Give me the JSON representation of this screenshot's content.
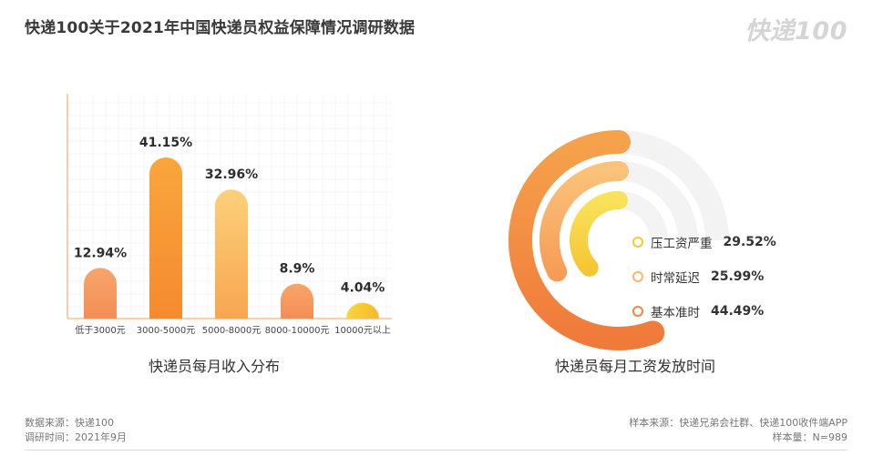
{
  "title": "快递100关于2021年中国快递员权益保障情况调研数据",
  "logo": "快递100",
  "colors": {
    "orange_dark": "#f2883a",
    "orange_mid": "#f7a655",
    "yellow": "#f7cf3a",
    "grid": "#f3f3f3",
    "axis": "#f7b98a"
  },
  "chart_data": [
    {
      "type": "bar",
      "title": "快递员每月收入分布",
      "categories": [
        "低于3000元",
        "3000-5000元",
        "5000-8000元",
        "8000-10000元",
        "10000元以上"
      ],
      "values": [
        12.94,
        41.15,
        32.96,
        8.9,
        4.04
      ],
      "value_labels": [
        "12.94%",
        "41.15%",
        "32.96%",
        "8.9%",
        "4.04%"
      ],
      "grid": true
    },
    {
      "type": "pie",
      "title": "快递员每月工资发放时间",
      "categories": [
        "压工资严重",
        "时常延迟",
        "基本准时"
      ],
      "values": [
        29.52,
        25.99,
        44.49
      ],
      "value_labels": [
        "29.52%",
        "25.99%",
        "44.49%"
      ],
      "legend": "right"
    }
  ],
  "footer": {
    "source": "数据来源：快递100",
    "period": "调研时间：2021年9月",
    "sample_source": "样本来源：快递兄弟会社群、快递100收件端APP",
    "sample_size": "样本量：N=989"
  }
}
